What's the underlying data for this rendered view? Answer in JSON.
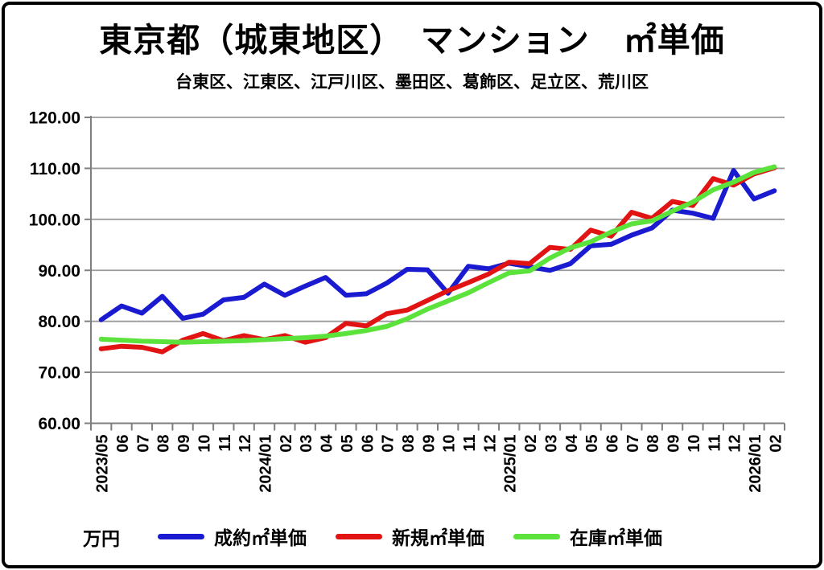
{
  "title": "東京都（城東地区）　マンション　㎡単価",
  "subtitle": "台東区、江東区、江戸川区、墨田区、葛飾区、足立区、荒川区",
  "unit_label": "万円",
  "legend": {
    "items": [
      {
        "label": "成約㎡単価",
        "color": "#1a1ad1"
      },
      {
        "label": "新規㎡単価",
        "color": "#e21313"
      },
      {
        "label": "在庫㎡単価",
        "color": "#5be33c"
      }
    ]
  },
  "chart_data": {
    "type": "line",
    "title": "東京都（城東地区）　マンション　㎡単価",
    "xlabel": "",
    "ylabel": "万円",
    "ylim": [
      60,
      120
    ],
    "ytick_labels": [
      "120.00",
      "110.00",
      "100.00",
      "90.00",
      "80.00",
      "70.00",
      "60.00"
    ],
    "grid": true,
    "legend_position": "bottom",
    "categories": [
      "2023/05",
      "06",
      "07",
      "08",
      "09",
      "10",
      "11",
      "12",
      "2024/01",
      "02",
      "03",
      "04",
      "05",
      "06",
      "07",
      "08",
      "09",
      "10",
      "11",
      "12",
      "2025/01",
      "02",
      "03",
      "04",
      "05",
      "06",
      "07",
      "08",
      "09",
      "10",
      "11",
      "12",
      "2026/01",
      "02"
    ],
    "series": [
      {
        "name": "成約㎡単価",
        "color": "#1a1ad1",
        "values": [
          80.3,
          83.0,
          81.6,
          84.9,
          80.6,
          81.4,
          84.2,
          84.7,
          87.3,
          85.1,
          86.9,
          88.6,
          85.1,
          85.4,
          87.5,
          90.2,
          90.1,
          85.5,
          90.8,
          90.3,
          91.4,
          90.7,
          90.0,
          91.3,
          94.8,
          95.1,
          96.9,
          98.3,
          101.8,
          101.2,
          100.2,
          109.6,
          104.0,
          105.6
        ]
      },
      {
        "name": "新規㎡単価",
        "color": "#e21313",
        "values": [
          74.6,
          75.1,
          74.9,
          74.0,
          76.3,
          77.6,
          76.2,
          77.2,
          76.4,
          77.2,
          75.9,
          76.8,
          79.6,
          79.1,
          81.5,
          82.2,
          84.1,
          86.0,
          87.6,
          89.3,
          91.6,
          91.3,
          94.5,
          94.1,
          97.9,
          96.7,
          101.4,
          100.2,
          103.5,
          102.7,
          108.0,
          106.7,
          108.9,
          110.1
        ]
      },
      {
        "name": "在庫㎡単価",
        "color": "#5be33c",
        "values": [
          76.5,
          76.3,
          76.1,
          76.0,
          75.9,
          76.0,
          76.1,
          76.2,
          76.4,
          76.6,
          76.8,
          77.1,
          77.6,
          78.2,
          79.0,
          80.5,
          82.4,
          84.0,
          85.6,
          87.6,
          89.5,
          89.9,
          92.4,
          94.4,
          95.6,
          97.5,
          99.1,
          99.7,
          101.6,
          103.4,
          105.8,
          107.3,
          109.2,
          110.3
        ]
      }
    ]
  }
}
